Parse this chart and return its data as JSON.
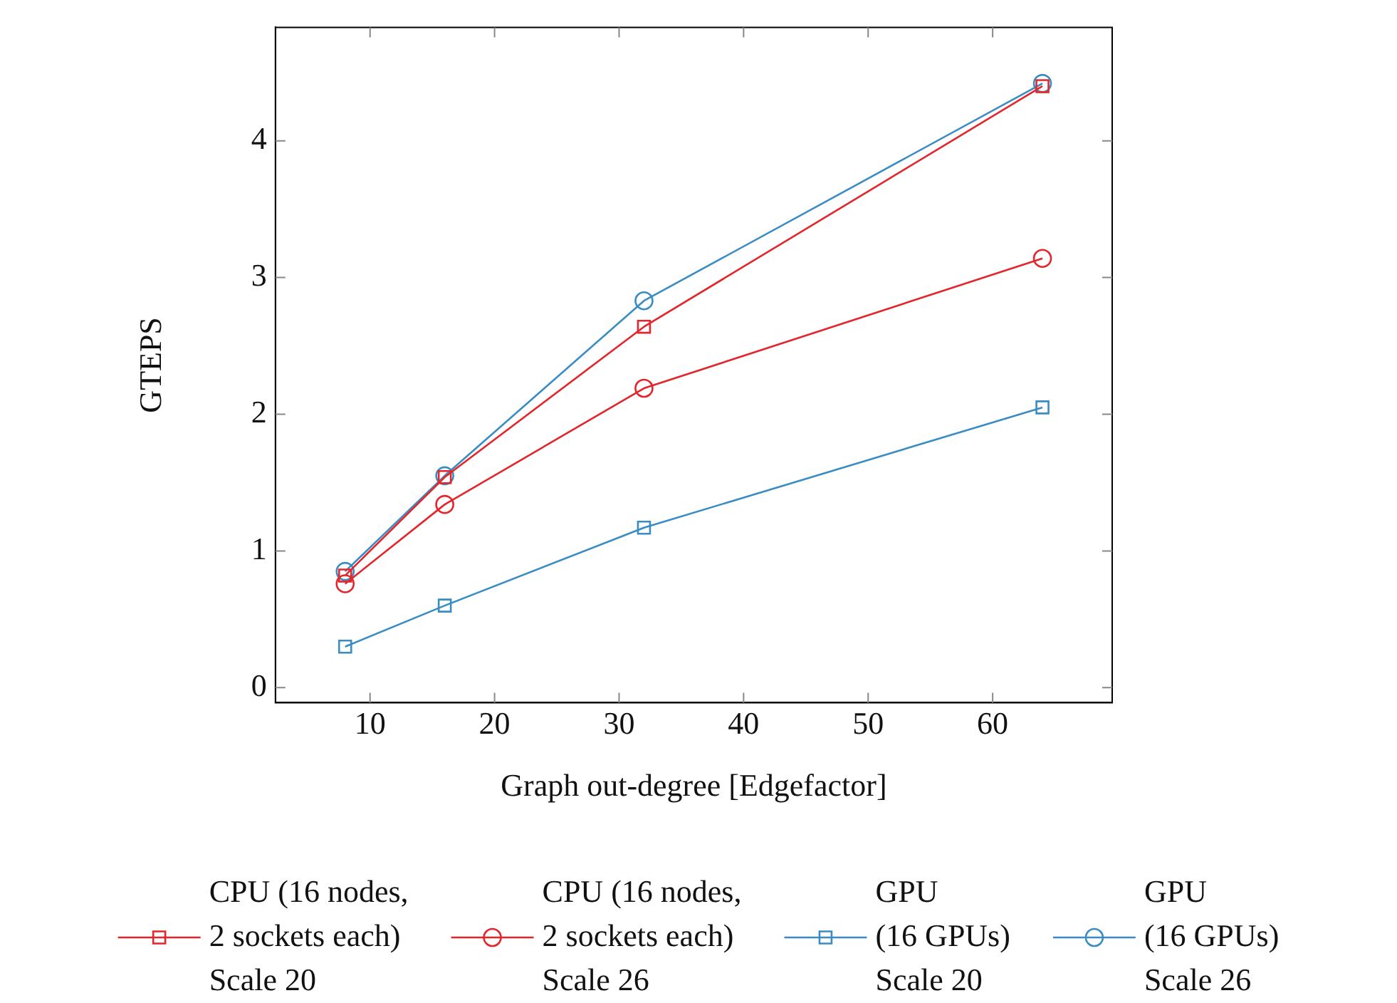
{
  "chart_data": {
    "type": "line",
    "xlabel": "Graph out-degree [Edgefactor]",
    "ylabel": "GTEPS",
    "xlim": [
      2.4,
      69.6
    ],
    "xticks": [
      10,
      20,
      30,
      40,
      50,
      60
    ],
    "ylim": [
      -0.11,
      4.83
    ],
    "yticks": [
      0,
      1,
      2,
      3,
      4
    ],
    "grid": false,
    "legend": "bottom",
    "line_style": "solid",
    "series": [
      {
        "name": "CPU (16 nodes,\n2 sockets each)\nScale 20",
        "color": "#e3262b",
        "marker": "square",
        "x": [
          8,
          16,
          32,
          64
        ],
        "values": [
          0.82,
          1.54,
          2.64,
          4.4
        ]
      },
      {
        "name": "CPU (16 nodes,\n2 sockets each)\nScale 26",
        "color": "#e3262b",
        "marker": "circle",
        "x": [
          8,
          16,
          32,
          64
        ],
        "values": [
          0.76,
          1.34,
          2.19,
          3.14
        ]
      },
      {
        "name": "GPU\n(16 GPUs)\nScale 20",
        "color": "#3a8cc4",
        "marker": "square",
        "x": [
          8,
          16,
          32,
          64
        ],
        "values": [
          0.3,
          0.6,
          1.17,
          2.05
        ]
      },
      {
        "name": "GPU\n(16 GPUs)\nScale 26",
        "color": "#3a8cc4",
        "marker": "circle",
        "x": [
          8,
          16,
          32,
          64
        ],
        "values": [
          0.85,
          1.55,
          2.83,
          4.42
        ]
      }
    ]
  }
}
